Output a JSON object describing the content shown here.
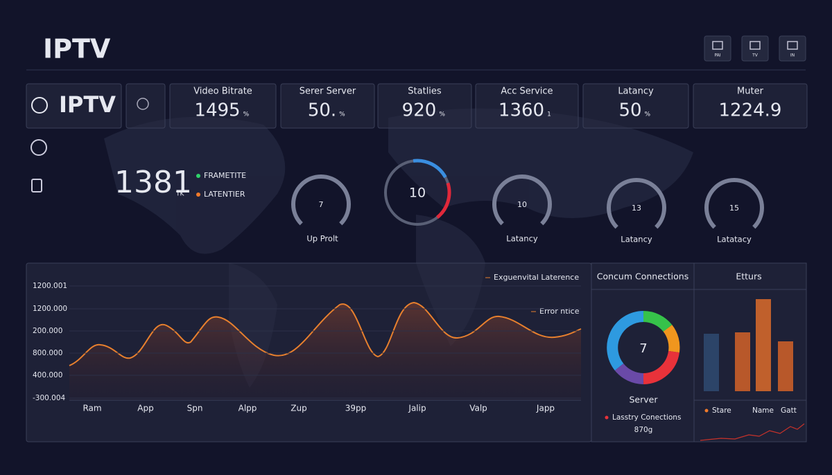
{
  "header": {
    "title": "IPTV",
    "icons": [
      "PAI",
      "TV",
      "IN"
    ]
  },
  "brand_card": {
    "title": "IPTV"
  },
  "stats": [
    {
      "label": "Video Bitrate",
      "value": 1495,
      "unit": "%"
    },
    {
      "label": "Serer Server",
      "value": "50.",
      "unit": "%"
    },
    {
      "label": "Statlies",
      "value": 920,
      "unit": "%"
    },
    {
      "label": "Acc Service",
      "value": 1360,
      "unit": "1"
    },
    {
      "label": "Latancy",
      "value": 50,
      "unit": "%"
    },
    {
      "label": "Muter",
      "value": 1224.9
    }
  ],
  "summary": {
    "value": 1381,
    "unit": "TK",
    "legend": [
      "FRAMETITE",
      "LATENTIER"
    ]
  },
  "gauges": [
    {
      "value": 7,
      "label": "Up Prolt"
    },
    {
      "value": 10
    },
    {
      "value": 10,
      "label": "Latancy"
    },
    {
      "value": 13,
      "label": "Latancy"
    },
    {
      "value": 15,
      "label": "Latatacy"
    }
  ],
  "line_chart": {
    "legend": [
      "Exguenvital Laterence",
      "Error ntice"
    ],
    "y_labels": [
      "1200.001",
      "1200.000",
      "200.000",
      "800.000",
      "400.000",
      "-300.004"
    ],
    "x_labels": [
      "Ram",
      "App",
      "Spn",
      "Alpp",
      "Zup",
      "39pp",
      "Jalip",
      "Valp",
      "Japp"
    ]
  },
  "donut": {
    "title": "Concum Connections",
    "center": 7,
    "label": "Server",
    "legend": "Lasstry Conections",
    "value": "870g"
  },
  "bars": {
    "title": "Etturs",
    "legend": [
      "Stare",
      "Name",
      "Gatt"
    ]
  }
}
